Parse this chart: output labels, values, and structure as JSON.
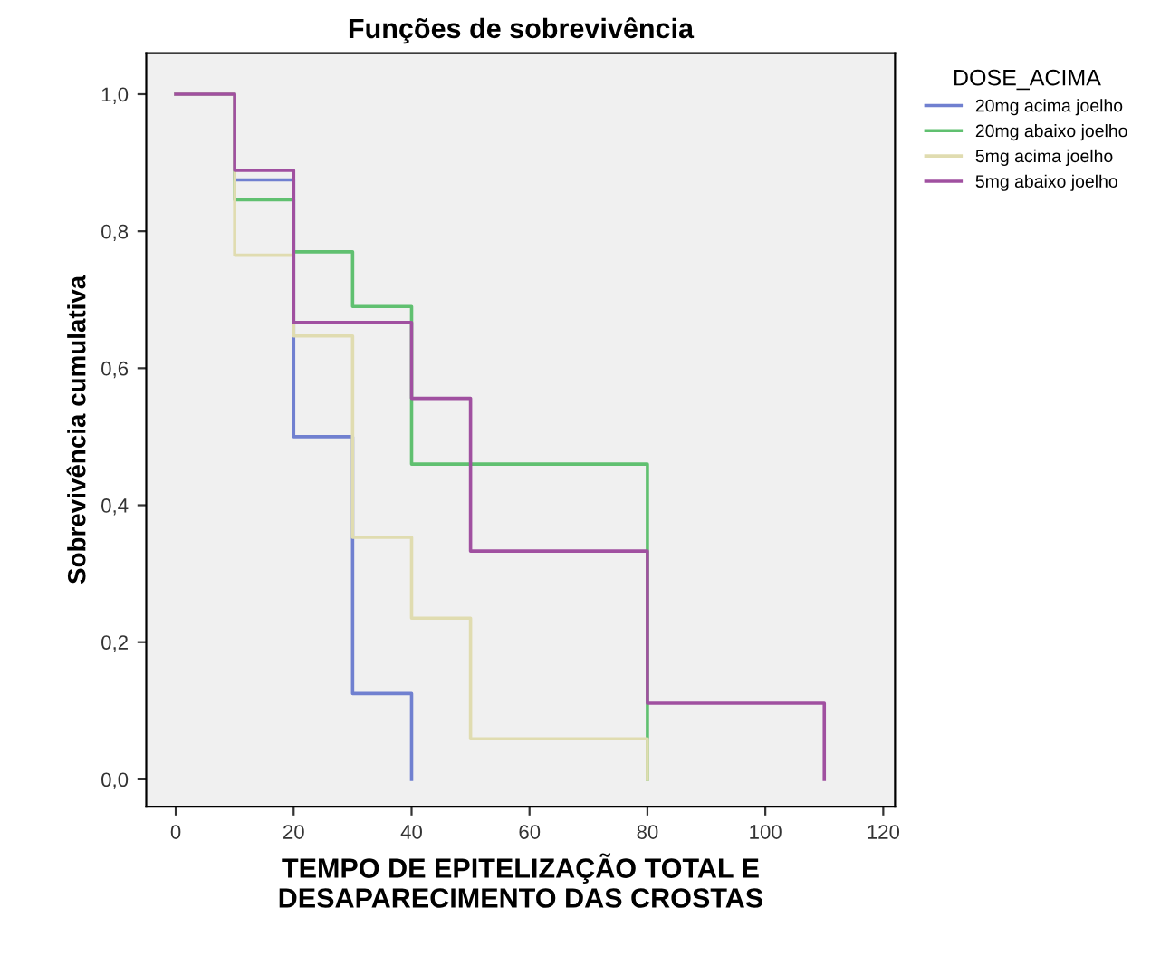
{
  "chart_data": {
    "type": "step",
    "title": "Funções de sobrevivência",
    "xlabel": "TEMPO DE EPITELIZAÇÃO TOTAL E\nDESAPARECIMENTO DAS CROSTAS",
    "ylabel": "Sobrevivência cumulativa",
    "legend_title": "DOSE_ACIMA",
    "legend": "right",
    "grid": false,
    "xlim": [
      -5,
      122
    ],
    "xticks": [
      0,
      20,
      40,
      60,
      80,
      100,
      120
    ],
    "ylim": [
      -0.04,
      1.06
    ],
    "yticks": [
      {
        "value": 0,
        "label": "0,0"
      },
      {
        "value": 0.2,
        "label": "0,2"
      },
      {
        "value": 0.4,
        "label": "0,4"
      },
      {
        "value": 0.6,
        "label": "0,6"
      },
      {
        "value": 0.8,
        "label": "0,8"
      },
      {
        "value": 1,
        "label": "1,0"
      }
    ],
    "series": [
      {
        "name": "20mg acima joelho",
        "color": "#7080d0",
        "x": [
          0,
          10,
          20,
          30,
          40
        ],
        "values": [
          1,
          0.875,
          0.5,
          0.125,
          0
        ]
      },
      {
        "name": "20mg abaixo joelho",
        "color": "#60c070",
        "x": [
          0,
          10,
          20,
          30,
          40,
          80
        ],
        "values": [
          1,
          0.846,
          0.77,
          0.69,
          0.46,
          0
        ]
      },
      {
        "name": "5mg acima joelho",
        "color": "#e0dcb0",
        "x": [
          0,
          10,
          20,
          30,
          40,
          50,
          80
        ],
        "values": [
          1,
          0.765,
          0.647,
          0.353,
          0.235,
          0.059,
          0
        ]
      },
      {
        "name": "5mg abaixo joelho",
        "color": "#a050a0",
        "x": [
          0,
          10,
          20,
          40,
          50,
          80,
          110
        ],
        "values": [
          1,
          0.889,
          0.667,
          0.556,
          0.333,
          0.111,
          0
        ]
      }
    ]
  }
}
